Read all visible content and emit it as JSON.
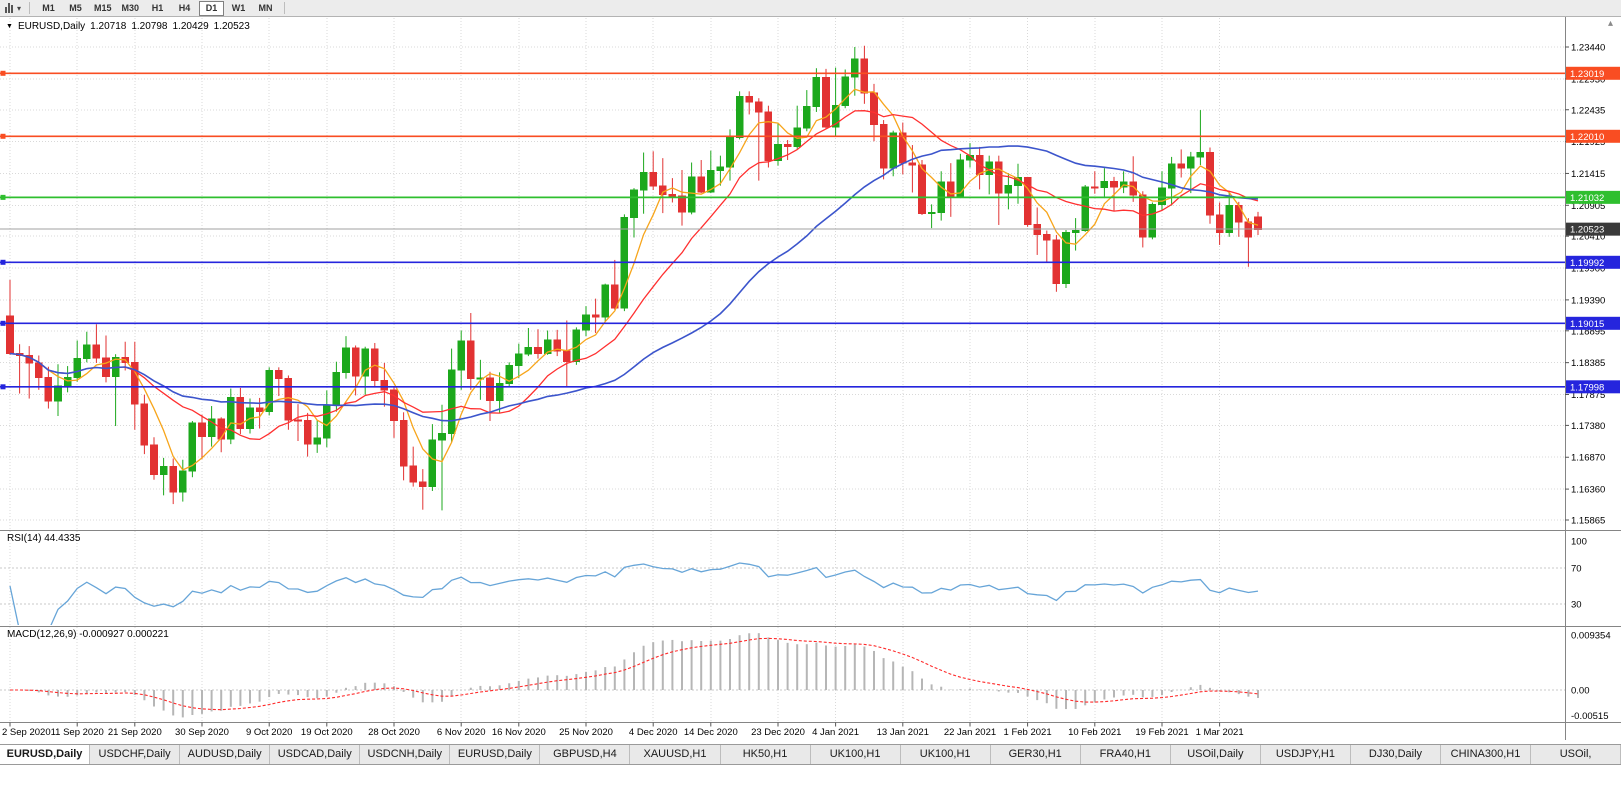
{
  "toolbar": {
    "timeframes": [
      "M1",
      "M5",
      "M15",
      "M30",
      "H1",
      "H4",
      "D1",
      "W1",
      "MN"
    ],
    "active_timeframe": "D1"
  },
  "icons": {
    "symbol_dropdown": "▼",
    "chart_dropdown": "▾",
    "scroll_arrow": "▴"
  },
  "title_bar": {
    "symbol": "EURUSD,Daily",
    "open": "1.20718",
    "high": "1.20798",
    "low": "1.20429",
    "close": "1.20523"
  },
  "chart_data": {
    "type": "candlestick",
    "title": "EURUSD,Daily",
    "current_ohlc": {
      "open": 1.20718,
      "high": 1.20798,
      "low": 1.20429,
      "close": 1.20523
    },
    "y_axis_labels": [
      "1.23440",
      "1.22930",
      "1.22435",
      "1.21925",
      "1.21415",
      "1.20905",
      "1.20410",
      "1.19900",
      "1.19390",
      "1.18895",
      "1.18385",
      "1.17875",
      "1.17380",
      "1.16870",
      "1.16360",
      "1.15865"
    ],
    "x_ticks": [
      {
        "label": "2 Sep 2020",
        "bar": 0
      },
      {
        "label": "11 Sep 2020",
        "bar": 7
      },
      {
        "label": "21 Sep 2020",
        "bar": 13
      },
      {
        "label": "30 Sep 2020",
        "bar": 20
      },
      {
        "label": "9 Oct 2020",
        "bar": 27
      },
      {
        "label": "19 Oct 2020",
        "bar": 33
      },
      {
        "label": "28 Oct 2020",
        "bar": 40
      },
      {
        "label": "6 Nov 2020",
        "bar": 47
      },
      {
        "label": "16 Nov 2020",
        "bar": 53
      },
      {
        "label": "25 Nov 2020",
        "bar": 60
      },
      {
        "label": "4 Dec 2020",
        "bar": 67
      },
      {
        "label": "14 Dec 2020",
        "bar": 73
      },
      {
        "label": "23 Dec 2020",
        "bar": 80
      },
      {
        "label": "4 Jan 2021",
        "bar": 86
      },
      {
        "label": "13 Jan 2021",
        "bar": 93
      },
      {
        "label": "22 Jan 2021",
        "bar": 100
      },
      {
        "label": "1 Feb 2021",
        "bar": 106
      },
      {
        "label": "10 Feb 2021",
        "bar": 113
      },
      {
        "label": "19 Feb 2021",
        "bar": 120
      },
      {
        "label": "1 Mar 2021",
        "bar": 126
      }
    ],
    "candles_ohlc": [
      [
        1.1913,
        1.1971,
        1.1851,
        1.1853
      ],
      [
        1.1853,
        1.1868,
        1.1789,
        1.185
      ],
      [
        1.185,
        1.1865,
        1.1781,
        1.1838
      ],
      [
        1.1838,
        1.185,
        1.1795,
        1.1815
      ],
      [
        1.1815,
        1.1832,
        1.1765,
        1.1777
      ],
      [
        1.1777,
        1.1836,
        1.1753,
        1.1801
      ],
      [
        1.1801,
        1.1833,
        1.1791,
        1.1815
      ],
      [
        1.1815,
        1.1874,
        1.1808,
        1.1845
      ],
      [
        1.1845,
        1.1888,
        1.1839,
        1.1867
      ],
      [
        1.1867,
        1.19,
        1.1838,
        1.1846
      ],
      [
        1.1846,
        1.1882,
        1.1807,
        1.1816
      ],
      [
        1.1816,
        1.1852,
        1.1737,
        1.1847
      ],
      [
        1.1847,
        1.1872,
        1.1826,
        1.1839
      ],
      [
        1.1839,
        1.1872,
        1.1731,
        1.1772
      ],
      [
        1.1772,
        1.1787,
        1.1692,
        1.1707
      ],
      [
        1.1707,
        1.1719,
        1.1651,
        1.1659
      ],
      [
        1.1659,
        1.1686,
        1.1626,
        1.1672
      ],
      [
        1.1672,
        1.1685,
        1.1612,
        1.1631
      ],
      [
        1.1631,
        1.1683,
        1.1616,
        1.1665
      ],
      [
        1.1665,
        1.1745,
        1.1655,
        1.1742
      ],
      [
        1.1742,
        1.1755,
        1.1684,
        1.172
      ],
      [
        1.172,
        1.1769,
        1.1704,
        1.1748
      ],
      [
        1.1748,
        1.1751,
        1.1695,
        1.1716
      ],
      [
        1.1716,
        1.1797,
        1.1708,
        1.1783
      ],
      [
        1.1783,
        1.1798,
        1.1724,
        1.1733
      ],
      [
        1.1733,
        1.1781,
        1.1725,
        1.1766
      ],
      [
        1.1766,
        1.1782,
        1.1733,
        1.176
      ],
      [
        1.176,
        1.1831,
        1.1754,
        1.1826
      ],
      [
        1.1826,
        1.1831,
        1.1785,
        1.1813
      ],
      [
        1.1813,
        1.1818,
        1.1731,
        1.1747
      ],
      [
        1.1747,
        1.1772,
        1.1713,
        1.1746
      ],
      [
        1.1746,
        1.1758,
        1.1688,
        1.1708
      ],
      [
        1.1708,
        1.1746,
        1.1694,
        1.1718
      ],
      [
        1.1718,
        1.1794,
        1.1703,
        1.177
      ],
      [
        1.177,
        1.184,
        1.176,
        1.1823
      ],
      [
        1.1823,
        1.1881,
        1.1813,
        1.1862
      ],
      [
        1.1862,
        1.1866,
        1.1786,
        1.1817
      ],
      [
        1.1817,
        1.1864,
        1.1787,
        1.186
      ],
      [
        1.186,
        1.187,
        1.18,
        1.181
      ],
      [
        1.181,
        1.1838,
        1.1768,
        1.1795
      ],
      [
        1.1795,
        1.18,
        1.1718,
        1.1746
      ],
      [
        1.1746,
        1.1759,
        1.165,
        1.1673
      ],
      [
        1.1673,
        1.1704,
        1.164,
        1.1647
      ],
      [
        1.1647,
        1.1668,
        1.1603,
        1.164
      ],
      [
        1.164,
        1.174,
        1.1633,
        1.1715
      ],
      [
        1.1715,
        1.1771,
        1.1602,
        1.1725
      ],
      [
        1.1725,
        1.1861,
        1.1711,
        1.1827
      ],
      [
        1.1827,
        1.189,
        1.1795,
        1.1873
      ],
      [
        1.1873,
        1.1918,
        1.1795,
        1.1813
      ],
      [
        1.1813,
        1.1843,
        1.1779,
        1.1814
      ],
      [
        1.1814,
        1.1824,
        1.1745,
        1.1778
      ],
      [
        1.1778,
        1.1823,
        1.1758,
        1.1805
      ],
      [
        1.1805,
        1.1839,
        1.1799,
        1.1834
      ],
      [
        1.1834,
        1.1869,
        1.1814,
        1.1852
      ],
      [
        1.1852,
        1.1894,
        1.1849,
        1.1863
      ],
      [
        1.1863,
        1.1892,
        1.1845,
        1.1853
      ],
      [
        1.1853,
        1.189,
        1.1851,
        1.1875
      ],
      [
        1.1875,
        1.1891,
        1.1849,
        1.1857
      ],
      [
        1.1857,
        1.1906,
        1.18,
        1.184
      ],
      [
        1.184,
        1.1895,
        1.1835,
        1.1891
      ],
      [
        1.1891,
        1.1929,
        1.1881,
        1.1915
      ],
      [
        1.1915,
        1.1941,
        1.1886,
        1.1912
      ],
      [
        1.1912,
        1.1965,
        1.1905,
        1.1963
      ],
      [
        1.1963,
        1.2003,
        1.1923,
        1.1926
      ],
      [
        1.1926,
        1.2076,
        1.1921,
        1.2071
      ],
      [
        1.2071,
        1.2118,
        1.2039,
        1.2115
      ],
      [
        1.2115,
        1.2175,
        1.2077,
        1.2143
      ],
      [
        1.2143,
        1.2177,
        1.2115,
        1.2121
      ],
      [
        1.2121,
        1.2166,
        1.2078,
        1.2108
      ],
      [
        1.2108,
        1.2134,
        1.2095,
        1.2105
      ],
      [
        1.2105,
        1.2147,
        1.2058,
        1.208
      ],
      [
        1.208,
        1.2159,
        1.2076,
        1.2136
      ],
      [
        1.2136,
        1.2163,
        1.211,
        1.2112
      ],
      [
        1.2112,
        1.2178,
        1.211,
        1.2146
      ],
      [
        1.2146,
        1.217,
        1.2122,
        1.2152
      ],
      [
        1.2152,
        1.2212,
        1.213,
        1.2199
      ],
      [
        1.2199,
        1.2273,
        1.2196,
        1.2265
      ],
      [
        1.2265,
        1.2273,
        1.2236,
        1.2256
      ],
      [
        1.2256,
        1.2262,
        1.213,
        1.224
      ],
      [
        1.224,
        1.225,
        1.2151,
        1.2162
      ],
      [
        1.2162,
        1.2222,
        1.2154,
        1.2188
      ],
      [
        1.2188,
        1.2195,
        1.2163,
        1.2185
      ],
      [
        1.2185,
        1.225,
        1.2181,
        1.2214
      ],
      [
        1.2214,
        1.2275,
        1.2209,
        1.2249
      ],
      [
        1.2249,
        1.231,
        1.224,
        1.2295
      ],
      [
        1.2295,
        1.2309,
        1.2213,
        1.2216
      ],
      [
        1.2216,
        1.2311,
        1.22,
        1.225
      ],
      [
        1.225,
        1.2308,
        1.2246,
        1.2296
      ],
      [
        1.2296,
        1.2344,
        1.2266,
        1.2325
      ],
      [
        1.2325,
        1.2346,
        1.2253,
        1.227
      ],
      [
        1.227,
        1.2285,
        1.2193,
        1.222
      ],
      [
        1.222,
        1.2227,
        1.2132,
        1.215
      ],
      [
        1.215,
        1.221,
        1.2137,
        1.2206
      ],
      [
        1.2206,
        1.2223,
        1.214,
        1.2158
      ],
      [
        1.2158,
        1.2187,
        1.2111,
        1.2155
      ],
      [
        1.2155,
        1.2163,
        1.2075,
        1.2077
      ],
      [
        1.2077,
        1.2092,
        1.2054,
        1.2079
      ],
      [
        1.2079,
        1.2145,
        1.2066,
        1.2128
      ],
      [
        1.2128,
        1.2158,
        1.2072,
        1.2105
      ],
      [
        1.2105,
        1.2173,
        1.2102,
        1.2163
      ],
      [
        1.2163,
        1.219,
        1.2151,
        1.217
      ],
      [
        1.217,
        1.2184,
        1.2116,
        1.214
      ],
      [
        1.214,
        1.217,
        1.2108,
        1.216
      ],
      [
        1.216,
        1.217,
        1.2059,
        1.211
      ],
      [
        1.211,
        1.2142,
        1.2084,
        1.2122
      ],
      [
        1.2122,
        1.2157,
        1.2093,
        1.2135
      ],
      [
        1.2135,
        1.2136,
        1.2056,
        1.206
      ],
      [
        1.206,
        1.2087,
        1.2011,
        1.2044
      ],
      [
        1.2044,
        1.205,
        1.1999,
        1.2035
      ],
      [
        1.2035,
        1.2043,
        1.1952,
        1.1965
      ],
      [
        1.1965,
        1.2051,
        1.1958,
        1.2047
      ],
      [
        1.2047,
        1.207,
        1.2018,
        1.205
      ],
      [
        1.205,
        1.2123,
        1.2048,
        1.212
      ],
      [
        1.212,
        1.2145,
        1.2109,
        1.2119
      ],
      [
        1.2119,
        1.215,
        1.2102,
        1.2129
      ],
      [
        1.2129,
        1.2136,
        1.2081,
        1.212
      ],
      [
        1.212,
        1.2145,
        1.211,
        1.2128
      ],
      [
        1.2128,
        1.2169,
        1.2096,
        1.2107
      ],
      [
        1.2107,
        1.2113,
        1.2023,
        1.204
      ],
      [
        1.204,
        1.2095,
        1.2036,
        1.2092
      ],
      [
        1.2092,
        1.2145,
        1.2082,
        1.2118
      ],
      [
        1.2118,
        1.2168,
        1.209,
        1.2157
      ],
      [
        1.2157,
        1.218,
        1.2135,
        1.215
      ],
      [
        1.215,
        1.2176,
        1.211,
        1.2168
      ],
      [
        1.2168,
        1.2243,
        1.2155,
        1.2175
      ],
      [
        1.2175,
        1.2183,
        1.2061,
        1.2075
      ],
      [
        1.2075,
        1.2095,
        1.2027,
        1.2047
      ],
      [
        1.2047,
        1.2113,
        1.204,
        1.209
      ],
      [
        1.209,
        1.2096,
        1.204,
        1.2064
      ],
      [
        1.2064,
        1.207,
        1.1992,
        1.204
      ],
      [
        1.2072,
        1.208,
        1.2043,
        1.2052
      ]
    ],
    "candle_colors": {
      "up": "#1ca81c",
      "down": "#e23232"
    },
    "moving_averages": [
      {
        "period": 5,
        "color": "#f7a51b"
      },
      {
        "period": 13,
        "color": "#ff3030"
      },
      {
        "period": 34,
        "color": "#3c55cc"
      }
    ],
    "horizontal_levels": [
      {
        "price": 1.23019,
        "label": "1.23019",
        "color": "#f94d22"
      },
      {
        "price": 1.2201,
        "label": "1.22010",
        "color": "#f94d22"
      },
      {
        "price": 1.21032,
        "label": "1.21032",
        "color": "#2fbf2f"
      },
      {
        "price": 1.19992,
        "label": "1.19992",
        "color": "#2525dd"
      },
      {
        "price": 1.19015,
        "label": "1.19015",
        "color": "#2525dd"
      },
      {
        "price": 1.17998,
        "label": "1.17998",
        "color": "#2525dd"
      }
    ],
    "bid_line": {
      "price": 1.20523,
      "label": "1.20523",
      "line_color": "#a0a0a0",
      "tag_color": "#3a3a3a"
    },
    "rsi": {
      "label": "RSI(14)",
      "value": "44.4335",
      "period": 14,
      "line_color": "#67a5d8",
      "axis_labels": [
        {
          "text": "100",
          "v": 100
        },
        {
          "text": "70",
          "v": 70
        },
        {
          "text": "30",
          "v": 30
        }
      ],
      "level_values": [
        70,
        30
      ]
    },
    "macd": {
      "label": "MACD(12,26,9)",
      "value": "-0.000927 0.000221",
      "fast": 12,
      "slow": 26,
      "signal_period": 9,
      "histogram_color": "#b6b6b6",
      "signal_color": "#ff2b2b",
      "axis_labels": [
        {
          "text": "0.009354",
          "v": 0.009354
        },
        {
          "text": "0.00",
          "v": 0
        },
        {
          "text": "-0.00515",
          "v": -0.00515
        }
      ]
    }
  },
  "tab_bar": {
    "active_index": 0,
    "tabs": [
      "EURUSD,Daily",
      "USDCHF,Daily",
      "AUDUSD,Daily",
      "USDCAD,Daily",
      "USDCNH,Daily",
      "EURUSD,Daily",
      "GBPUSD,H4",
      "XAUUSD,H1",
      "HK50,H1",
      "UK100,H1",
      "UK100,H1",
      "GER30,H1",
      "FRA40,H1",
      "USOil,Daily",
      "USDJPY,H1",
      "DJ30,Daily",
      "CHINA300,H1",
      "USOil,"
    ]
  }
}
